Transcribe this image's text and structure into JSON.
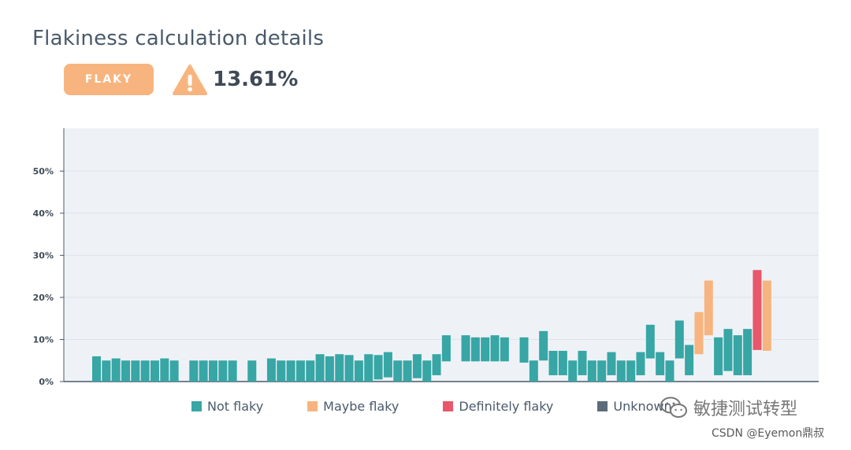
{
  "header": {
    "title": "Flakiness calculation details",
    "badge": "FLAKY",
    "score": "13.61%",
    "icon": "warning-triangle-icon"
  },
  "colors": {
    "not_flaky": "#37a6a5",
    "maybe_flaky": "#f8b47e",
    "definitely_flaky": "#e8576a",
    "unknown": "#5b6b7b",
    "plot_bg": "#eef2f7",
    "badge_bg": "#f8b47e"
  },
  "legend": {
    "not_flaky": "Not flaky",
    "maybe_flaky": "Maybe flaky",
    "definitely_flaky": "Definitely flaky",
    "unknown": "Unknown"
  },
  "watermark": {
    "text": "敏捷测试转型",
    "credit": "CSDN @Eyemon鼎叔"
  },
  "chart_data": {
    "type": "bar",
    "subtype": "floating-range",
    "title": "",
    "xlabel": "",
    "ylabel": "",
    "ylim": [
      0,
      60
    ],
    "yticks": [
      0,
      10,
      20,
      30,
      40,
      50
    ],
    "ytick_labels": [
      "0%",
      "10%",
      "20%",
      "30%",
      "40%",
      "50%"
    ],
    "grid": true,
    "legend_position": "bottom",
    "bars": [
      {
        "low": 0,
        "high": 6,
        "cat": "not_flaky"
      },
      {
        "low": 0,
        "high": 5,
        "cat": "not_flaky"
      },
      {
        "low": 0,
        "high": 5.5,
        "cat": "not_flaky"
      },
      {
        "low": 0,
        "high": 5,
        "cat": "not_flaky"
      },
      {
        "low": 0,
        "high": 5,
        "cat": "not_flaky"
      },
      {
        "low": 0,
        "high": 5,
        "cat": "not_flaky"
      },
      {
        "low": 0,
        "high": 5,
        "cat": "not_flaky"
      },
      {
        "low": 0,
        "high": 5.5,
        "cat": "not_flaky"
      },
      {
        "low": 0,
        "high": 5,
        "cat": "not_flaky"
      },
      null,
      {
        "low": 0,
        "high": 5,
        "cat": "not_flaky"
      },
      {
        "low": 0,
        "high": 5,
        "cat": "not_flaky"
      },
      {
        "low": 0,
        "high": 5,
        "cat": "not_flaky"
      },
      {
        "low": 0,
        "high": 5,
        "cat": "not_flaky"
      },
      {
        "low": 0,
        "high": 5,
        "cat": "not_flaky"
      },
      null,
      {
        "low": 0,
        "high": 5,
        "cat": "not_flaky"
      },
      null,
      {
        "low": 0,
        "high": 5.5,
        "cat": "not_flaky"
      },
      {
        "low": 0,
        "high": 5,
        "cat": "not_flaky"
      },
      {
        "low": 0,
        "high": 5,
        "cat": "not_flaky"
      },
      {
        "low": 0,
        "high": 5,
        "cat": "not_flaky"
      },
      {
        "low": 0,
        "high": 5,
        "cat": "not_flaky"
      },
      {
        "low": 0,
        "high": 6.5,
        "cat": "not_flaky"
      },
      {
        "low": 0,
        "high": 6,
        "cat": "not_flaky"
      },
      {
        "low": 0,
        "high": 6.5,
        "cat": "not_flaky"
      },
      {
        "low": 0,
        "high": 6.3,
        "cat": "not_flaky"
      },
      {
        "low": 0,
        "high": 5,
        "cat": "not_flaky"
      },
      {
        "low": 0,
        "high": 6.5,
        "cat": "not_flaky"
      },
      {
        "low": 0.5,
        "high": 6.3,
        "cat": "not_flaky"
      },
      {
        "low": 1,
        "high": 7,
        "cat": "not_flaky"
      },
      {
        "low": 0,
        "high": 5,
        "cat": "not_flaky"
      },
      {
        "low": 0,
        "high": 5,
        "cat": "not_flaky"
      },
      {
        "low": 0.8,
        "high": 6.5,
        "cat": "not_flaky"
      },
      {
        "low": 0,
        "high": 5,
        "cat": "not_flaky"
      },
      {
        "low": 1.5,
        "high": 6.5,
        "cat": "not_flaky"
      },
      {
        "low": 4.8,
        "high": 11,
        "cat": "not_flaky"
      },
      null,
      {
        "low": 4.8,
        "high": 11,
        "cat": "not_flaky"
      },
      {
        "low": 4.8,
        "high": 10.5,
        "cat": "not_flaky"
      },
      {
        "low": 4.8,
        "high": 10.5,
        "cat": "not_flaky"
      },
      {
        "low": 4.8,
        "high": 11,
        "cat": "not_flaky"
      },
      {
        "low": 4.8,
        "high": 10.5,
        "cat": "not_flaky"
      },
      null,
      {
        "low": 4.5,
        "high": 10.5,
        "cat": "not_flaky"
      },
      {
        "low": 0,
        "high": 5,
        "cat": "not_flaky"
      },
      {
        "low": 5,
        "high": 12,
        "cat": "not_flaky"
      },
      {
        "low": 1.5,
        "high": 7.3,
        "cat": "not_flaky"
      },
      {
        "low": 1.5,
        "high": 7.3,
        "cat": "not_flaky"
      },
      {
        "low": 0,
        "high": 5,
        "cat": "not_flaky"
      },
      {
        "low": 1.5,
        "high": 7.3,
        "cat": "not_flaky"
      },
      {
        "low": 0,
        "high": 5,
        "cat": "not_flaky"
      },
      {
        "low": 0,
        "high": 5,
        "cat": "not_flaky"
      },
      {
        "low": 1.5,
        "high": 7,
        "cat": "not_flaky"
      },
      {
        "low": 0,
        "high": 5,
        "cat": "not_flaky"
      },
      {
        "low": 0,
        "high": 5,
        "cat": "not_flaky"
      },
      {
        "low": 1.5,
        "high": 7,
        "cat": "not_flaky"
      },
      {
        "low": 5.5,
        "high": 13.5,
        "cat": "not_flaky"
      },
      {
        "low": 1.5,
        "high": 7,
        "cat": "not_flaky"
      },
      {
        "low": 0,
        "high": 5,
        "cat": "not_flaky"
      },
      {
        "low": 5.5,
        "high": 14.5,
        "cat": "not_flaky"
      },
      {
        "low": 1.5,
        "high": 8.7,
        "cat": "not_flaky"
      },
      {
        "low": 6.5,
        "high": 16.5,
        "cat": "maybe_flaky"
      },
      {
        "low": 11,
        "high": 24,
        "cat": "maybe_flaky"
      },
      {
        "low": 1.5,
        "high": 10.5,
        "cat": "not_flaky"
      },
      {
        "low": 2.5,
        "high": 12.5,
        "cat": "not_flaky"
      },
      {
        "low": 1.5,
        "high": 11,
        "cat": "not_flaky"
      },
      {
        "low": 1.5,
        "high": 12.5,
        "cat": "not_flaky"
      },
      {
        "low": 7.5,
        "high": 26.5,
        "cat": "definitely_flaky"
      },
      {
        "low": 7.3,
        "high": 24,
        "cat": "maybe_flaky"
      }
    ]
  }
}
